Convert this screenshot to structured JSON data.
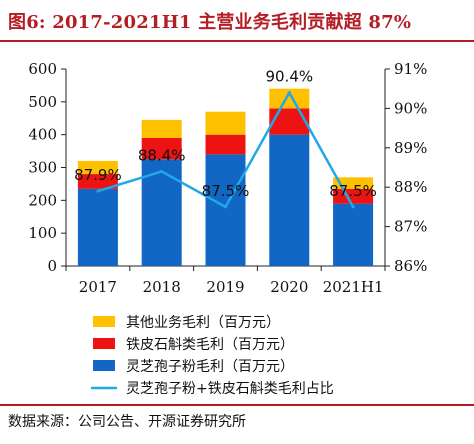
{
  "title": "图6:  2017-2021H1 主营业务毛利贡献超 87%",
  "source": "数据来源：公司公告、开源证券研究所",
  "colors": {
    "title": "#b51d24",
    "lingzhi": "#1266c4",
    "tiepi": "#ee1313",
    "other": "#ffc000",
    "line": "#1fa9e8"
  },
  "chart_data": {
    "type": "bar",
    "stacked": true,
    "categories": [
      "2017",
      "2018",
      "2019",
      "2020",
      "2021H1"
    ],
    "y_left": {
      "ylim": [
        0,
        600
      ],
      "ticks": [
        0,
        100,
        200,
        300,
        400,
        500,
        600
      ]
    },
    "y_right": {
      "ylim": [
        86,
        91
      ],
      "ticks": [
        "86%",
        "87%",
        "88%",
        "89%",
        "90%",
        "91%"
      ]
    },
    "series": [
      {
        "name": "灵芝孢子粉毛利（百万元）",
        "type": "bar",
        "color": "#1266c4",
        "values": [
          235,
          325,
          340,
          400,
          190
        ]
      },
      {
        "name": "铁皮石斛类毛利（百万元）",
        "type": "bar",
        "color": "#ee1313",
        "values": [
          45,
          65,
          60,
          80,
          45
        ]
      },
      {
        "name": "其他业务毛利（百万元）",
        "type": "bar",
        "color": "#ffc000",
        "values": [
          40,
          55,
          70,
          60,
          35
        ]
      },
      {
        "name": "灵芝孢子粉+铁皮石斛类毛利占比",
        "type": "line",
        "axis": "right",
        "color": "#1fa9e8",
        "values": [
          87.9,
          88.4,
          87.5,
          90.4,
          87.5
        ],
        "labels": [
          "87.9%",
          "88.4%",
          "87.5%",
          "90.4%",
          "87.5%"
        ]
      }
    ],
    "legend": "bottom",
    "grid": false
  }
}
